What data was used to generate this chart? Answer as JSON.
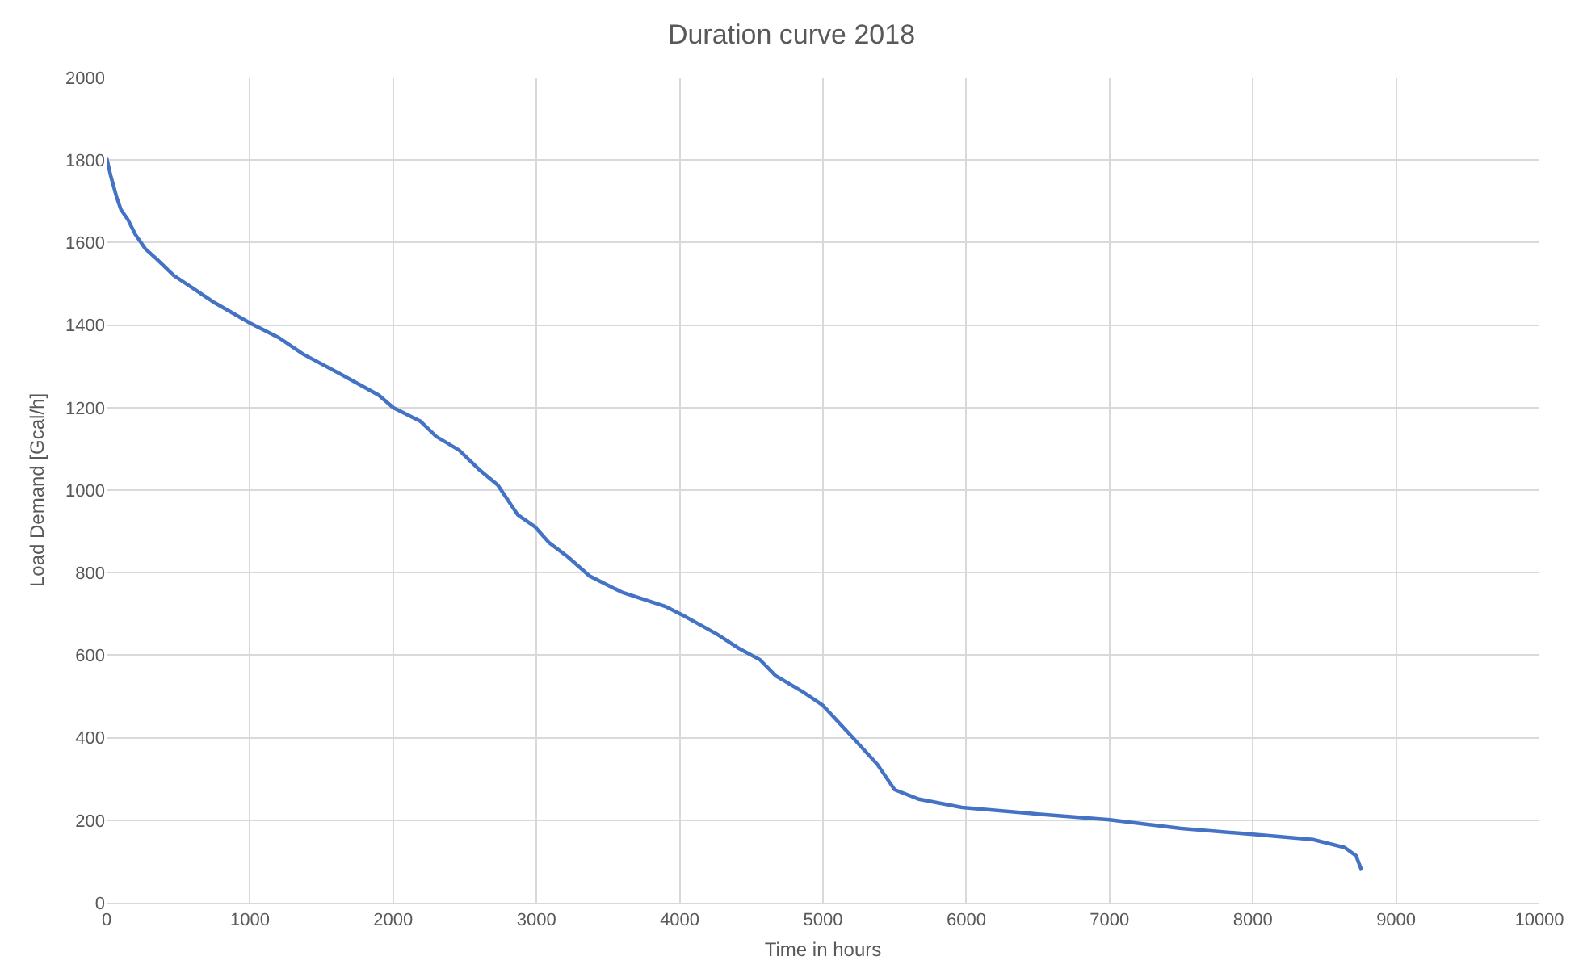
{
  "chart_data": {
    "type": "line",
    "title": "Duration curve 2018",
    "xlabel": "Time in hours",
    "ylabel": "Load Demand [Gcal/h]",
    "x": [
      0,
      30,
      70,
      100,
      150,
      200,
      270,
      350,
      470,
      600,
      750,
      1000,
      1200,
      1370,
      1640,
      1900,
      2000,
      2190,
      2300,
      2460,
      2600,
      2730,
      2870,
      2990,
      3090,
      3220,
      3370,
      3600,
      3900,
      4030,
      4260,
      4410,
      4560,
      4670,
      4860,
      5000,
      5190,
      5380,
      5500,
      5670,
      5970,
      6500,
      7000,
      7500,
      8000,
      8420,
      8640,
      8720,
      8760
    ],
    "series": [
      {
        "color": "#4472c4",
        "values": [
          1805,
          1760,
          1710,
          1680,
          1655,
          1620,
          1585,
          1560,
          1520,
          1490,
          1455,
          1405,
          1370,
          1330,
          1280,
          1230,
          1200,
          1167,
          1130,
          1097,
          1050,
          1012,
          940,
          911,
          872,
          838,
          792,
          752,
          718,
          695,
          651,
          617,
          589,
          550,
          511,
          478,
          407,
          335,
          274,
          251,
          231,
          215,
          201,
          180,
          166,
          153,
          134,
          114,
          78
        ]
      }
    ],
    "xlim": [
      0,
      10000
    ],
    "xticks": [
      0,
      1000,
      2000,
      3000,
      4000,
      5000,
      6000,
      7000,
      8000,
      9000,
      10000
    ],
    "ylim": [
      0,
      2000
    ],
    "yticks": [
      0,
      200,
      400,
      600,
      800,
      1000,
      1200,
      1400,
      1600,
      1800,
      2000
    ],
    "grid": true
  }
}
